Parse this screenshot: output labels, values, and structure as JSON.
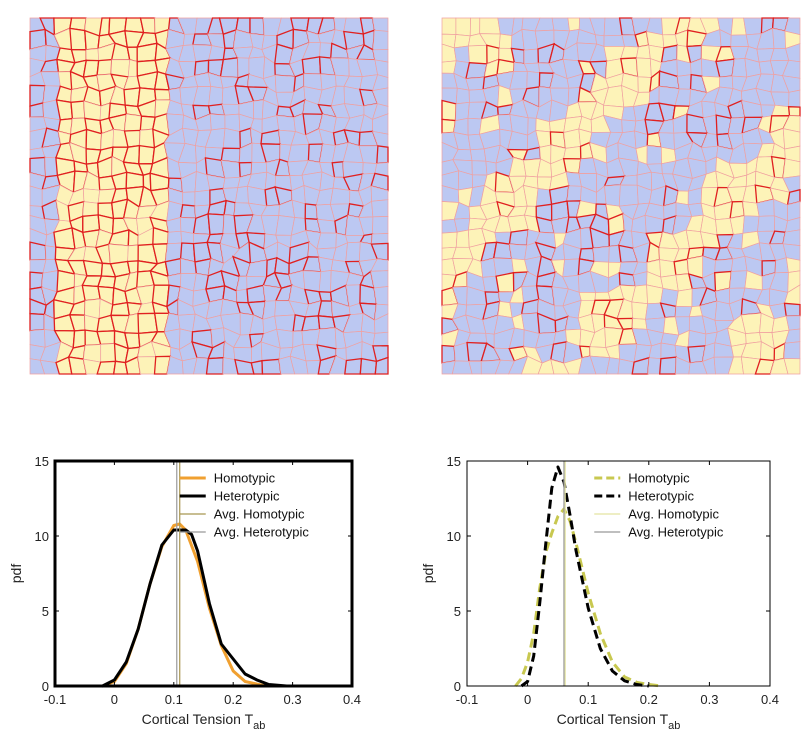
{
  "colors": {
    "cell_yellow": "#fdf3b8",
    "cell_blue": "#bcc8f2",
    "edge_red": "#e02020",
    "edge_light": "#f0a0a0",
    "homotypic_orange": "#f0a030",
    "homotypic_olive": "#c8c850",
    "heterotypic": "#000000",
    "avg_homotypic_orange": "#a89650",
    "avg_heterotypic_gray": "#999999",
    "avg_homotypic_light": "#e4e4a0"
  },
  "tissue_panels": [
    {
      "name": "sorted-tissue",
      "pattern": "stripe"
    },
    {
      "name": "mixed-tissue",
      "pattern": "mixed"
    }
  ],
  "chart_data": [
    {
      "type": "line",
      "panel": "left",
      "xlabel_main": "Cortical Tension T",
      "xlabel_sub": "ab",
      "ylabel": "pdf",
      "xlim": [
        -0.1,
        0.4
      ],
      "ylim": [
        0,
        15
      ],
      "xticks": [
        -0.1,
        0,
        0.1,
        0.2,
        0.3,
        0.4
      ],
      "xtick_labels": [
        "-0.1",
        "0",
        "0.1",
        "0.2",
        "0.3",
        "0.4"
      ],
      "yticks": [
        0,
        5,
        10,
        15
      ],
      "ytick_labels": [
        "0",
        "5",
        "10",
        "15"
      ],
      "legend_position": "top-right",
      "series": [
        {
          "name": "Homotypic",
          "style": "solid",
          "color": "#f0a030",
          "width": 3,
          "x": [
            -0.02,
            0.0,
            0.02,
            0.04,
            0.06,
            0.08,
            0.1,
            0.11,
            0.12,
            0.14,
            0.16,
            0.18,
            0.2,
            0.22,
            0.25,
            0.28
          ],
          "y": [
            0.0,
            0.3,
            1.5,
            3.8,
            6.8,
            9.3,
            10.7,
            10.8,
            10.4,
            8.3,
            5.2,
            2.7,
            1.0,
            0.3,
            0.05,
            0.0
          ]
        },
        {
          "name": "Heterotypic",
          "style": "solid",
          "color": "#000000",
          "width": 3,
          "x": [
            -0.02,
            0.0,
            0.02,
            0.04,
            0.06,
            0.08,
            0.1,
            0.12,
            0.13,
            0.14,
            0.16,
            0.18,
            0.2,
            0.22,
            0.24,
            0.26,
            0.29
          ],
          "y": [
            0.0,
            0.4,
            1.6,
            3.8,
            6.8,
            9.4,
            10.4,
            10.4,
            10.1,
            9.0,
            5.5,
            2.8,
            1.8,
            0.8,
            0.4,
            0.1,
            0.0
          ]
        },
        {
          "name": "Avg. Homotypic",
          "style": "vline",
          "color": "#a89650",
          "width": 1.2,
          "xpos": 0.11
        },
        {
          "name": "Avg. Heterotypic",
          "style": "vline",
          "color": "#999999",
          "width": 1.2,
          "xpos": 0.105
        }
      ]
    },
    {
      "type": "line",
      "panel": "right",
      "xlabel_main": "Cortical Tension T",
      "xlabel_sub": "ab",
      "ylabel": "pdf",
      "xlim": [
        -0.1,
        0.4
      ],
      "ylim": [
        0,
        15
      ],
      "xticks": [
        -0.1,
        0,
        0.1,
        0.2,
        0.3,
        0.4
      ],
      "xtick_labels": [
        "-0.1",
        "0",
        "0.1",
        "0.2",
        "0.3",
        "0.4"
      ],
      "yticks": [
        0,
        5,
        10,
        15
      ],
      "ytick_labels": [
        "0",
        "5",
        "10",
        "15"
      ],
      "legend_position": "top-right",
      "series": [
        {
          "name": "Homotypic",
          "style": "dashed",
          "color": "#c8c850",
          "width": 3,
          "x": [
            -0.02,
            -0.01,
            0.0,
            0.01,
            0.02,
            0.03,
            0.04,
            0.05,
            0.06,
            0.07,
            0.08,
            0.1,
            0.12,
            0.14,
            0.16,
            0.18,
            0.2,
            0.22
          ],
          "y": [
            0.0,
            0.5,
            1.6,
            3.5,
            6.5,
            8.9,
            10.2,
            11.3,
            11.8,
            11.0,
            9.5,
            6.2,
            3.5,
            1.6,
            0.6,
            0.25,
            0.1,
            0.0
          ]
        },
        {
          "name": "Heterotypic",
          "style": "dashed",
          "color": "#000000",
          "width": 3,
          "x": [
            -0.01,
            0.0,
            0.01,
            0.02,
            0.03,
            0.04,
            0.05,
            0.06,
            0.07,
            0.08,
            0.1,
            0.12,
            0.14,
            0.16,
            0.18,
            0.2
          ],
          "y": [
            0.0,
            0.3,
            2.0,
            5.5,
            9.5,
            13.2,
            14.6,
            13.6,
            11.4,
            9.0,
            5.2,
            2.5,
            1.0,
            0.35,
            0.1,
            0.0
          ]
        },
        {
          "name": "Avg. Homotypic",
          "style": "vline",
          "color": "#e4e4a0",
          "width": 1.2,
          "xpos": 0.062
        },
        {
          "name": "Avg. Heterotypic",
          "style": "vline",
          "color": "#999999",
          "width": 1.2,
          "xpos": 0.06
        }
      ]
    }
  ]
}
